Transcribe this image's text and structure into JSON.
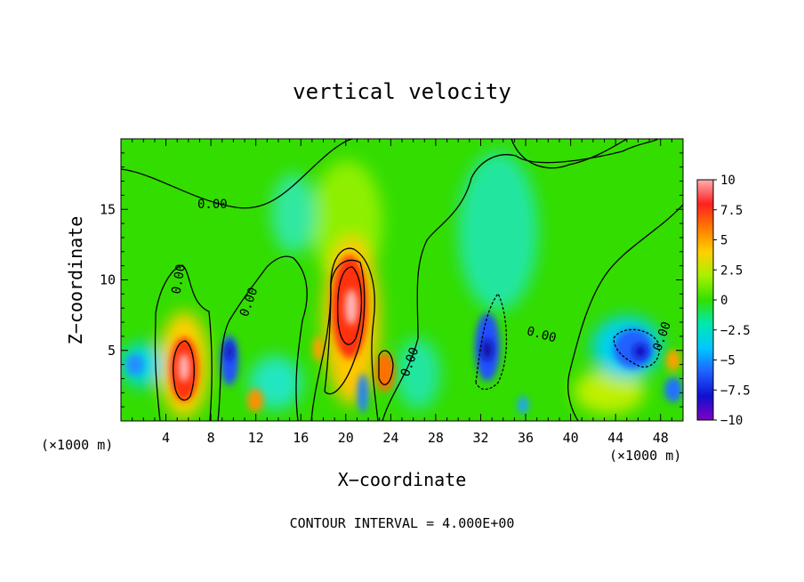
{
  "chart_data": {
    "type": "heatmap",
    "title": "vertical velocity",
    "xlabel": "X−coordinate",
    "ylabel": "Z−coordinate",
    "x_unit_left": "(×1000 m)",
    "x_unit_right": "(×1000 m)",
    "footer": "CONTOUR INTERVAL = 4.000E+00",
    "xlim": [
      0,
      50
    ],
    "ylim": [
      0,
      20
    ],
    "x_ticks": [
      4,
      8,
      12,
      16,
      20,
      24,
      28,
      32,
      36,
      40,
      44,
      48
    ],
    "x_tick_labels": [
      "4",
      "8",
      "12",
      "16",
      "20",
      "24",
      "28",
      "32",
      "36",
      "40",
      "44",
      "48"
    ],
    "y_ticks": [
      5,
      10,
      15
    ],
    "y_tick_labels": [
      "5",
      "10",
      "15"
    ],
    "colorbar": {
      "range": [
        -10,
        10
      ],
      "ticks": [
        10,
        7.5,
        5,
        2.5,
        0,
        -2.5,
        -5,
        -7.5,
        -10
      ],
      "tick_labels": [
        "10",
        "7.5",
        "5",
        "2.5",
        "0",
        "−2.5",
        "−5",
        "−7.5",
        "−10"
      ]
    },
    "contour_labels": [
      "0.00",
      "0.00",
      "0.00",
      "0.00",
      "0.00",
      "0.00"
    ],
    "features": [
      {
        "x": 5.5,
        "z": 3.5,
        "value": 10
      },
      {
        "x": 20.5,
        "z": 8.0,
        "value": 10
      },
      {
        "x": 23.5,
        "z": 3.5,
        "value": 6
      },
      {
        "x": 12.0,
        "z": 1.5,
        "value": 5
      },
      {
        "x": 17.5,
        "z": 5.0,
        "value": 4
      },
      {
        "x": 9.5,
        "z": 5.0,
        "value": -8
      },
      {
        "x": 32.5,
        "z": 5.0,
        "value": -8
      },
      {
        "x": 45.5,
        "z": 5.0,
        "value": -6
      },
      {
        "x": 48.5,
        "z": 2.0,
        "value": -5
      },
      {
        "x": 1.5,
        "z": 4.0,
        "value": -4
      },
      {
        "x": 21.5,
        "z": 2.0,
        "value": -4
      },
      {
        "x": 36.0,
        "z": 1.0,
        "value": -3
      },
      {
        "x": 49.5,
        "z": 4.5,
        "value": 3
      }
    ]
  }
}
